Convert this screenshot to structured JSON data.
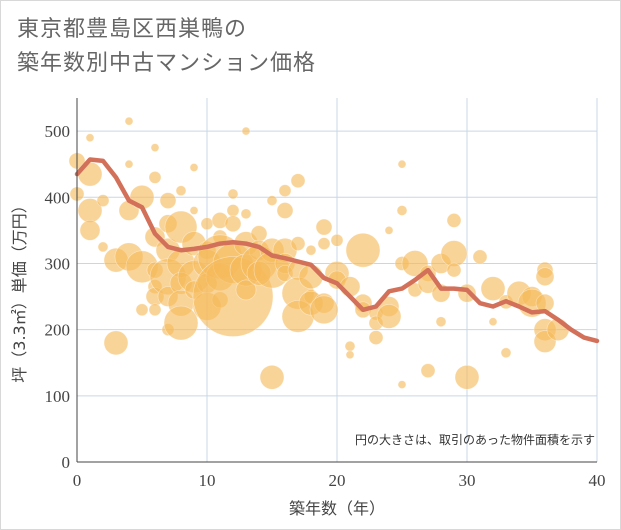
{
  "title": {
    "line1": "東京都豊島区西巣鴨の",
    "line2": "築年数別中古マンション価格"
  },
  "colors": {
    "bubble": "#f5b95a",
    "line": "#d2705a",
    "grid": "#c9d7e4",
    "axis": "#444444"
  },
  "chart_data": {
    "type": "scatter",
    "xlabel": "築年数（年）",
    "ylabel": "坪（3.3㎡）単価（万円）",
    "xlim": [
      0,
      40
    ],
    "ylim": [
      0,
      550
    ],
    "xticks": [
      0,
      10,
      20,
      30,
      40
    ],
    "yticks": [
      0,
      100,
      200,
      300,
      400,
      500
    ],
    "grid": true,
    "note": "円の大きさは、取引のあった物件面積を示す",
    "bubbles": [
      [
        0,
        455,
        8
      ],
      [
        0,
        405,
        7
      ],
      [
        1,
        490,
        4
      ],
      [
        1,
        435,
        12
      ],
      [
        1,
        380,
        12
      ],
      [
        1,
        350,
        10
      ],
      [
        2,
        395,
        6
      ],
      [
        2,
        325,
        5
      ],
      [
        3,
        305,
        12
      ],
      [
        3,
        180,
        12
      ],
      [
        4,
        515,
        4
      ],
      [
        4,
        450,
        4
      ],
      [
        4,
        380,
        10
      ],
      [
        4,
        310,
        14
      ],
      [
        5,
        400,
        12
      ],
      [
        5,
        295,
        16
      ],
      [
        5,
        230,
        6
      ],
      [
        6,
        475,
        4
      ],
      [
        6,
        430,
        6
      ],
      [
        6,
        340,
        10
      ],
      [
        6,
        290,
        8
      ],
      [
        6,
        265,
        7
      ],
      [
        6,
        250,
        9
      ],
      [
        6,
        230,
        6
      ],
      [
        7,
        395,
        8
      ],
      [
        7,
        360,
        9
      ],
      [
        7,
        320,
        12
      ],
      [
        7,
        280,
        18
      ],
      [
        7,
        250,
        10
      ],
      [
        7,
        200,
        6
      ],
      [
        8,
        410,
        5
      ],
      [
        8,
        355,
        16
      ],
      [
        8,
        300,
        14
      ],
      [
        8,
        270,
        11
      ],
      [
        8,
        240,
        13
      ],
      [
        8,
        210,
        17
      ],
      [
        9,
        445,
        4
      ],
      [
        9,
        380,
        4
      ],
      [
        9,
        330,
        12
      ],
      [
        9,
        280,
        16
      ],
      [
        9,
        260,
        9
      ],
      [
        10,
        360,
        6
      ],
      [
        10,
        320,
        9
      ],
      [
        10,
        300,
        14
      ],
      [
        10,
        270,
        10
      ],
      [
        10,
        235,
        14
      ],
      [
        11,
        365,
        8
      ],
      [
        11,
        340,
        7
      ],
      [
        11,
        310,
        22
      ],
      [
        11,
        280,
        14
      ],
      [
        11,
        245,
        8
      ],
      [
        12,
        405,
        5
      ],
      [
        12,
        380,
        6
      ],
      [
        12,
        360,
        8
      ],
      [
        12,
        300,
        20
      ],
      [
        12,
        250,
        40
      ],
      [
        13,
        500,
        4
      ],
      [
        13,
        375,
        5
      ],
      [
        13,
        330,
        12
      ],
      [
        13,
        290,
        16
      ],
      [
        13,
        260,
        10
      ],
      [
        14,
        345,
        8
      ],
      [
        14,
        320,
        10
      ],
      [
        14,
        300,
        18
      ],
      [
        14,
        285,
        12
      ],
      [
        15,
        395,
        5
      ],
      [
        15,
        320,
        12
      ],
      [
        15,
        290,
        18
      ],
      [
        15,
        128,
        12
      ],
      [
        16,
        410,
        6
      ],
      [
        16,
        380,
        8
      ],
      [
        16,
        320,
        12
      ],
      [
        16,
        300,
        10
      ],
      [
        16,
        285,
        8
      ],
      [
        17,
        425,
        7
      ],
      [
        17,
        330,
        7
      ],
      [
        17,
        290,
        10
      ],
      [
        17,
        255,
        16
      ],
      [
        17,
        220,
        16
      ],
      [
        18,
        320,
        5
      ],
      [
        18,
        280,
        12
      ],
      [
        18,
        250,
        7
      ],
      [
        18,
        240,
        12
      ],
      [
        19,
        355,
        8
      ],
      [
        19,
        330,
        6
      ],
      [
        19,
        240,
        10
      ],
      [
        19,
        230,
        14
      ],
      [
        20,
        335,
        6
      ],
      [
        20,
        285,
        12
      ],
      [
        20,
        275,
        9
      ],
      [
        21,
        265,
        10
      ],
      [
        21,
        175,
        5
      ],
      [
        21,
        162,
        4
      ],
      [
        22,
        320,
        17
      ],
      [
        22,
        240,
        9
      ],
      [
        22,
        230,
        8
      ],
      [
        23,
        225,
        7
      ],
      [
        23,
        210,
        7
      ],
      [
        23,
        188,
        7
      ],
      [
        24,
        235,
        10
      ],
      [
        24,
        220,
        12
      ],
      [
        24,
        350,
        4
      ],
      [
        25,
        450,
        4
      ],
      [
        25,
        380,
        5
      ],
      [
        25,
        300,
        7
      ],
      [
        25,
        117,
        4
      ],
      [
        26,
        300,
        13
      ],
      [
        26,
        260,
        7
      ],
      [
        27,
        285,
        8
      ],
      [
        27,
        270,
        10
      ],
      [
        27,
        138,
        7
      ],
      [
        28,
        300,
        10
      ],
      [
        28,
        255,
        9
      ],
      [
        28,
        212,
        5
      ],
      [
        29,
        365,
        7
      ],
      [
        29,
        315,
        13
      ],
      [
        29,
        290,
        7
      ],
      [
        30,
        255,
        9
      ],
      [
        30,
        128,
        12
      ],
      [
        31,
        310,
        7
      ],
      [
        32,
        262,
        12
      ],
      [
        32,
        212,
        4
      ],
      [
        33,
        242,
        7
      ],
      [
        33,
        165,
        5
      ],
      [
        34,
        255,
        12
      ],
      [
        35,
        250,
        10
      ],
      [
        35,
        240,
        14
      ],
      [
        36,
        290,
        8
      ],
      [
        36,
        280,
        9
      ],
      [
        36,
        240,
        9
      ],
      [
        36,
        200,
        11
      ],
      [
        36,
        182,
        11
      ],
      [
        37,
        200,
        11
      ]
    ],
    "series": [
      {
        "x": [
          0,
          1,
          2,
          3,
          4,
          5,
          6,
          7,
          8,
          9,
          10,
          11,
          12,
          13,
          14,
          15,
          16,
          17,
          18,
          19,
          20,
          21,
          22,
          23,
          24,
          25,
          26,
          27,
          28,
          29,
          30,
          31,
          32,
          33,
          34,
          35,
          36,
          37,
          38,
          39,
          40
        ],
        "values": [
          435,
          457,
          455,
          430,
          395,
          385,
          345,
          325,
          320,
          322,
          325,
          330,
          332,
          330,
          325,
          312,
          308,
          303,
          298,
          278,
          270,
          250,
          230,
          235,
          258,
          262,
          275,
          290,
          262,
          262,
          260,
          240,
          235,
          243,
          235,
          226,
          228,
          215,
          200,
          188,
          183
        ]
      }
    ]
  }
}
